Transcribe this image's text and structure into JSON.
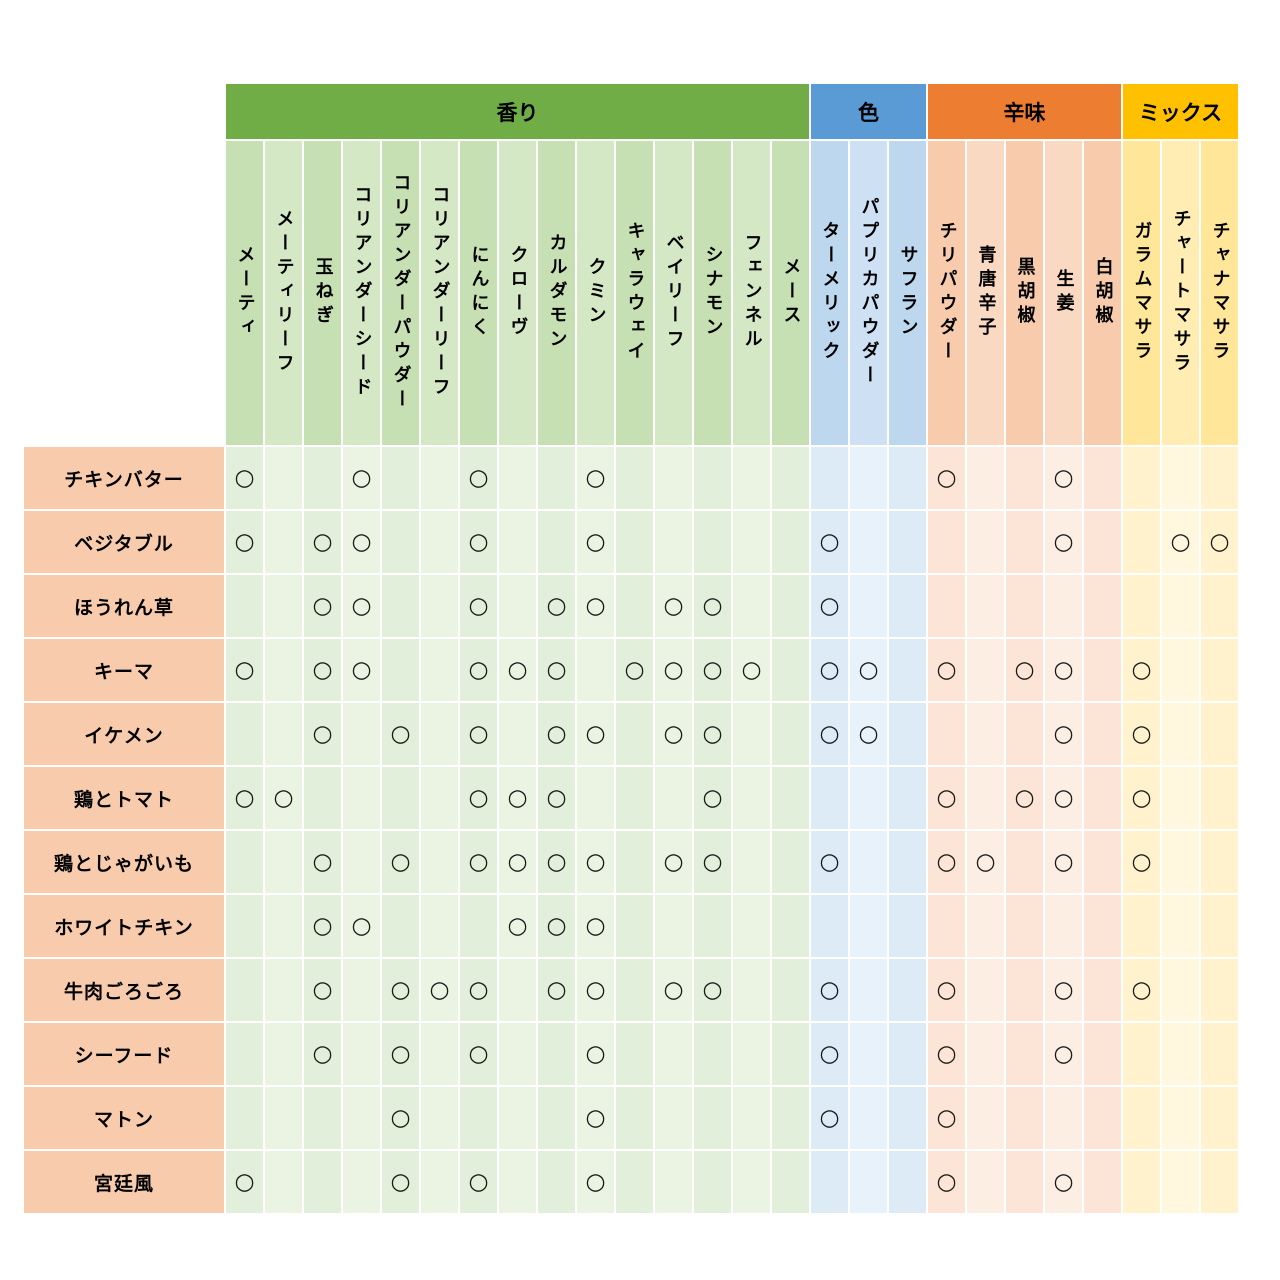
{
  "mark_symbol": "○",
  "row_header_bg": "#F8CBAD",
  "chart_data": {
    "type": "table",
    "groups": [
      {
        "label": "香り",
        "header_color": "#70AD47",
        "sub_colors": [
          "#C6E0B4",
          "#D5E8C5"
        ],
        "body_colors": [
          "#E2EFDA",
          "#EBF4E3"
        ],
        "columns": [
          "メーティ",
          "メーティリーフ",
          "玉ねぎ",
          "コリアンダーシード",
          "コリアンダーパウダー",
          "コリアンダーリーフ",
          "にんにく",
          "クローヴ",
          "カルダモン",
          "クミン",
          "キャラウェイ",
          "ベイリーフ",
          "シナモン",
          "フェンネル",
          "メース"
        ]
      },
      {
        "label": "色",
        "header_color": "#5B9BD5",
        "sub_colors": [
          "#BDD7EE",
          "#CEE1F4"
        ],
        "body_colors": [
          "#DDEBF7",
          "#E8F2FB"
        ],
        "columns": [
          "ターメリック",
          "パプリカパウダー",
          "サフラン"
        ]
      },
      {
        "label": "辛味",
        "header_color": "#ED7D31",
        "sub_colors": [
          "#F8CBAD",
          "#FAD9C3"
        ],
        "body_colors": [
          "#FCE4D6",
          "#FDEEE3"
        ],
        "columns": [
          "チリパウダー",
          "青唐辛子",
          "黒胡椒",
          "生姜",
          "白胡椒"
        ]
      },
      {
        "label": "ミックス",
        "header_color": "#FFC000",
        "sub_colors": [
          "#FFE699",
          "#FFEDB3"
        ],
        "body_colors": [
          "#FFF2CC",
          "#FFF7DE"
        ],
        "columns": [
          "ガラムマサラ",
          "チャートマサラ",
          "チャナマサラ"
        ]
      }
    ],
    "rows": [
      {
        "label": "チキンバター",
        "marks": [
          1,
          0,
          0,
          1,
          0,
          0,
          1,
          0,
          0,
          1,
          0,
          0,
          0,
          0,
          0,
          0,
          0,
          0,
          1,
          0,
          0,
          1,
          0,
          0,
          0,
          0
        ]
      },
      {
        "label": "ベジタブル",
        "marks": [
          1,
          0,
          1,
          1,
          0,
          0,
          1,
          0,
          0,
          1,
          0,
          0,
          0,
          0,
          0,
          1,
          0,
          0,
          0,
          0,
          0,
          1,
          0,
          0,
          1,
          1
        ]
      },
      {
        "label": "ほうれん草",
        "marks": [
          0,
          0,
          1,
          1,
          0,
          0,
          1,
          0,
          1,
          1,
          0,
          1,
          1,
          0,
          0,
          1,
          0,
          0,
          0,
          0,
          0,
          0,
          0,
          0,
          0,
          0
        ]
      },
      {
        "label": "キーマ",
        "marks": [
          1,
          0,
          1,
          1,
          0,
          0,
          1,
          1,
          1,
          0,
          1,
          1,
          1,
          1,
          0,
          1,
          1,
          0,
          1,
          0,
          1,
          1,
          0,
          1,
          0,
          0
        ]
      },
      {
        "label": "イケメン",
        "marks": [
          0,
          0,
          1,
          0,
          1,
          0,
          1,
          0,
          1,
          1,
          0,
          1,
          1,
          0,
          0,
          1,
          1,
          0,
          0,
          0,
          0,
          1,
          0,
          1,
          0,
          0
        ]
      },
      {
        "label": "鶏とトマト",
        "marks": [
          1,
          1,
          0,
          0,
          0,
          0,
          1,
          1,
          1,
          0,
          0,
          0,
          1,
          0,
          0,
          0,
          0,
          0,
          1,
          0,
          1,
          1,
          0,
          1,
          0,
          0
        ]
      },
      {
        "label": "鶏とじゃがいも",
        "marks": [
          0,
          0,
          1,
          0,
          1,
          0,
          1,
          1,
          1,
          1,
          0,
          1,
          1,
          0,
          0,
          1,
          0,
          0,
          1,
          1,
          0,
          1,
          0,
          1,
          0,
          0
        ]
      },
      {
        "label": "ホワイトチキン",
        "marks": [
          0,
          0,
          1,
          1,
          0,
          0,
          0,
          1,
          1,
          1,
          0,
          0,
          0,
          0,
          0,
          0,
          0,
          0,
          0,
          0,
          0,
          0,
          0,
          0,
          0,
          0
        ]
      },
      {
        "label": "牛肉ごろごろ",
        "marks": [
          0,
          0,
          1,
          0,
          1,
          1,
          1,
          0,
          1,
          1,
          0,
          1,
          1,
          0,
          0,
          1,
          0,
          0,
          1,
          0,
          0,
          1,
          0,
          1,
          0,
          0
        ]
      },
      {
        "label": "シーフード",
        "marks": [
          0,
          0,
          1,
          0,
          1,
          0,
          1,
          0,
          0,
          1,
          0,
          0,
          0,
          0,
          0,
          1,
          0,
          0,
          1,
          0,
          0,
          1,
          0,
          0,
          0,
          0
        ]
      },
      {
        "label": "マトン",
        "marks": [
          0,
          0,
          0,
          0,
          1,
          0,
          0,
          0,
          0,
          1,
          0,
          0,
          0,
          0,
          0,
          1,
          0,
          0,
          1,
          0,
          0,
          0,
          0,
          0,
          0,
          0
        ]
      },
      {
        "label": "宮廷風",
        "marks": [
          1,
          0,
          0,
          0,
          1,
          0,
          1,
          0,
          0,
          1,
          0,
          0,
          0,
          0,
          0,
          0,
          0,
          0,
          1,
          0,
          0,
          1,
          0,
          0,
          0,
          0
        ]
      }
    ]
  }
}
